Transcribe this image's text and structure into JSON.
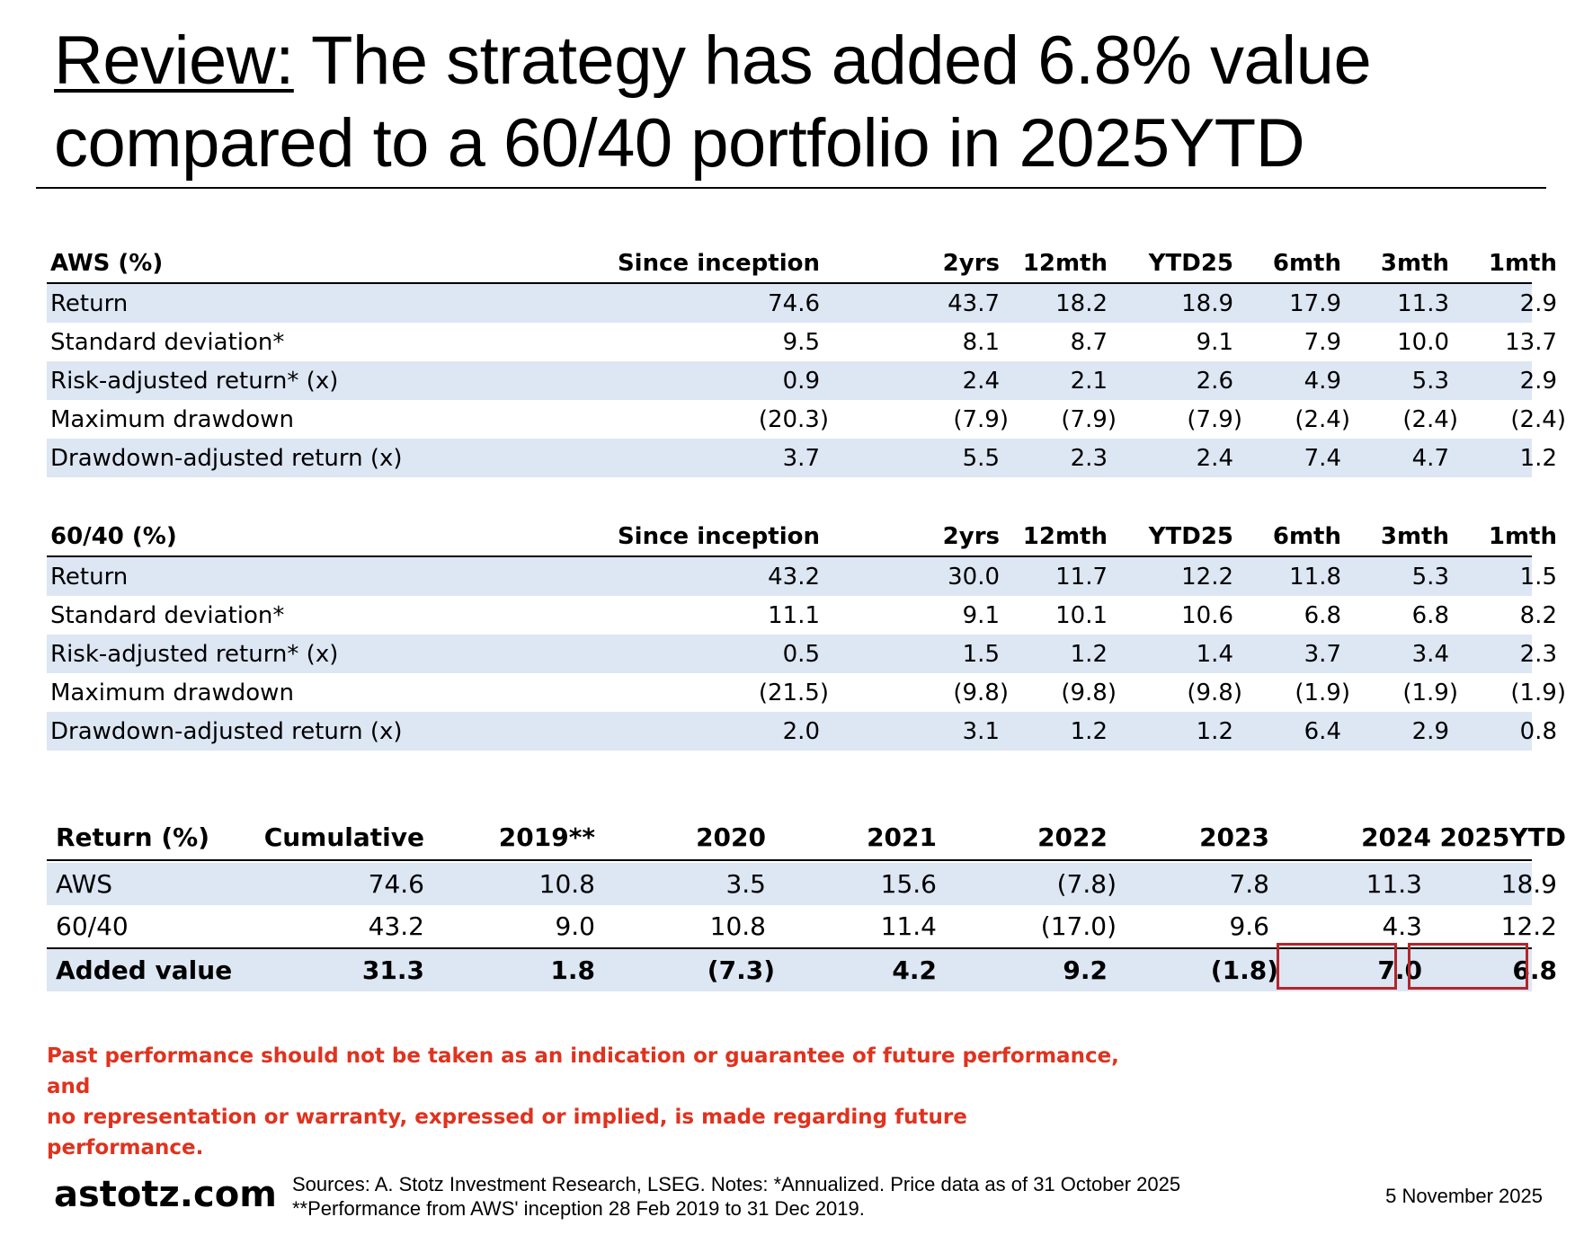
{
  "title": {
    "prefix": "Review:",
    "text": " The strategy has added 6.8% value compared to a 60/40 portfolio in 2025YTD"
  },
  "aws_table": {
    "header": [
      "AWS (%)",
      "Since inception",
      "2yrs",
      "12mth",
      "YTD25",
      "6mth",
      "3mth",
      "1mth"
    ],
    "rows": [
      [
        "Return",
        "74.6",
        "43.7",
        "18.2",
        "18.9",
        "17.9",
        "11.3",
        "2.9"
      ],
      [
        "Standard deviation*",
        "9.5",
        "8.1",
        "8.7",
        "9.1",
        "7.9",
        "10.0",
        "13.7"
      ],
      [
        "Risk-adjusted return* (x)",
        "0.9",
        "2.4",
        "2.1",
        "2.6",
        "4.9",
        "5.3",
        "2.9"
      ],
      [
        "Maximum drawdown",
        "(20.3)",
        "(7.9)",
        "(7.9)",
        "(7.9)",
        "(2.4)",
        "(2.4)",
        "(2.4)"
      ],
      [
        "Drawdown-adjusted return (x)",
        "3.7",
        "5.5",
        "2.3",
        "2.4",
        "7.4",
        "4.7",
        "1.2"
      ]
    ]
  },
  "bench_table": {
    "header": [
      "60/40 (%)",
      "Since inception",
      "2yrs",
      "12mth",
      "YTD25",
      "6mth",
      "3mth",
      "1mth"
    ],
    "rows": [
      [
        "Return",
        "43.2",
        "30.0",
        "11.7",
        "12.2",
        "11.8",
        "5.3",
        "1.5"
      ],
      [
        "Standard deviation*",
        "11.1",
        "9.1",
        "10.1",
        "10.6",
        "6.8",
        "6.8",
        "8.2"
      ],
      [
        "Risk-adjusted return* (x)",
        "0.5",
        "1.5",
        "1.2",
        "1.4",
        "3.7",
        "3.4",
        "2.3"
      ],
      [
        "Maximum drawdown",
        "(21.5)",
        "(9.8)",
        "(9.8)",
        "(9.8)",
        "(1.9)",
        "(1.9)",
        "(1.9)"
      ],
      [
        "Drawdown-adjusted return (x)",
        "2.0",
        "3.1",
        "1.2",
        "1.2",
        "6.4",
        "2.9",
        "0.8"
      ]
    ]
  },
  "yearly_table": {
    "header": [
      "Return (%)",
      "Cumulative",
      "2019**",
      "2020",
      "2021",
      "2022",
      "2023",
      "2024",
      "2025YTD"
    ],
    "rows": [
      [
        "AWS",
        "74.6",
        "10.8",
        "3.5",
        "15.6",
        "(7.8)",
        "7.8",
        "11.3",
        "18.9"
      ],
      [
        "60/40",
        "43.2",
        "9.0",
        "10.8",
        "11.4",
        "(17.0)",
        "9.6",
        "4.3",
        "12.2"
      ],
      [
        "Added value",
        "31.3",
        "1.8",
        "(7.3)",
        "4.2",
        "9.2",
        "(1.8)",
        "7.0",
        "6.8"
      ]
    ]
  },
  "disclaimer": {
    "line1": "Past performance should not be taken as an indication or guarantee of future performance, and",
    "line2": "no representation or warranty, expressed or implied, is made regarding future performance."
  },
  "footer": {
    "brand": "astotz.com",
    "sources_line1": "Sources: A. Stotz Investment Research, LSEG. Notes: *Annualized. Price data as of 31 October 2025",
    "sources_line2": "**Performance from AWS' inception 28 Feb 2019 to 31 Dec 2019.",
    "date": "5 November 2025"
  },
  "colors": {
    "row_shade": "#dde6f3",
    "highlight_border": "#b3262a",
    "disclaimer_text": "#e0321e"
  }
}
